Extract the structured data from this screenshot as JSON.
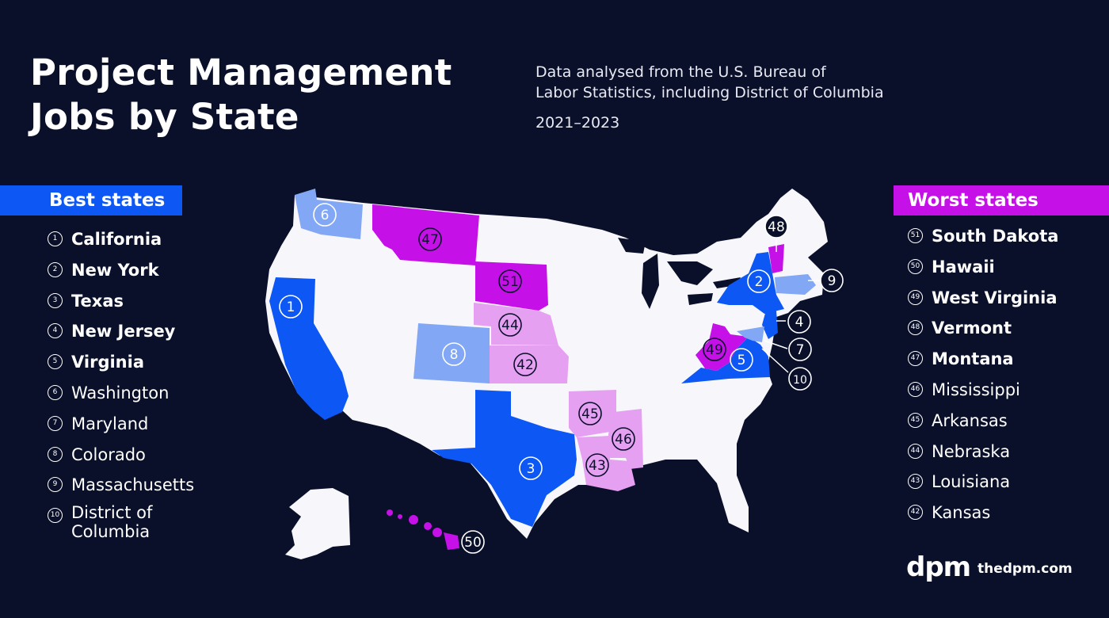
{
  "title_line1": "Project Management",
  "title_line2": "Jobs by State",
  "subtitle_line1": "Data analysed from the U.S. Bureau of",
  "subtitle_line2": "Labor Statistics, including District of Columbia",
  "years": "2021–2023",
  "best": {
    "header": "Best states",
    "items": [
      {
        "rank": "1",
        "name": "California",
        "bold": true
      },
      {
        "rank": "2",
        "name": "New York",
        "bold": true
      },
      {
        "rank": "3",
        "name": "Texas",
        "bold": true
      },
      {
        "rank": "4",
        "name": "New Jersey",
        "bold": true
      },
      {
        "rank": "5",
        "name": "Virginia",
        "bold": true
      },
      {
        "rank": "6",
        "name": "Washington",
        "bold": false
      },
      {
        "rank": "7",
        "name": "Maryland",
        "bold": false
      },
      {
        "rank": "8",
        "name": "Colorado",
        "bold": false
      },
      {
        "rank": "9",
        "name": "Massachusetts",
        "bold": false
      },
      {
        "rank": "10",
        "name": "District of",
        "name2": "Columbia",
        "bold": false
      }
    ]
  },
  "worst": {
    "header": "Worst states",
    "items": [
      {
        "rank": "51",
        "name": "South Dakota",
        "bold": true
      },
      {
        "rank": "50",
        "name": "Hawaii",
        "bold": true
      },
      {
        "rank": "49",
        "name": "West Virginia",
        "bold": true
      },
      {
        "rank": "48",
        "name": "Vermont",
        "bold": true
      },
      {
        "rank": "47",
        "name": "Montana",
        "bold": true
      },
      {
        "rank": "46",
        "name": "Mississippi",
        "bold": false
      },
      {
        "rank": "45",
        "name": "Arkansas",
        "bold": false
      },
      {
        "rank": "44",
        "name": "Nebraska",
        "bold": false
      },
      {
        "rank": "43",
        "name": "Louisiana",
        "bold": false
      },
      {
        "rank": "42",
        "name": "Kansas",
        "bold": false
      }
    ]
  },
  "colors": {
    "background": "#0a0f2a",
    "top5_best": "#0d58f5",
    "best_6_10": "#82a7f5",
    "worst_top5": "#c510e8",
    "worst_6_10": "#e5a0f1",
    "base_state": "#f7f7fb"
  },
  "map_labels": {
    "wa": "6",
    "mt": "47",
    "vt": "48",
    "ny": "2",
    "ma": "9",
    "ca": "1",
    "sd": "51",
    "ne": "44",
    "co": "8",
    "ks": "42",
    "nj": "4",
    "md": "7",
    "wv": "49",
    "va": "5",
    "dc": "10",
    "ar": "45",
    "ms": "46",
    "la": "43",
    "tx": "3",
    "hi": "50"
  },
  "logo": "dpm",
  "site": "thedpm.com"
}
